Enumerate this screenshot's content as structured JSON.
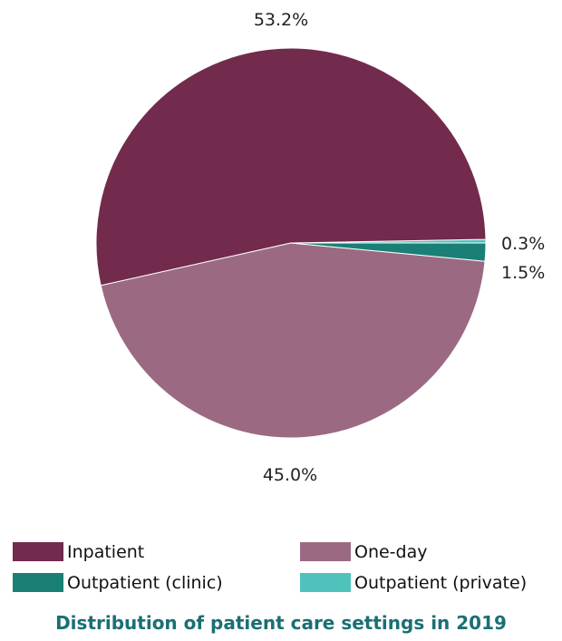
{
  "chart_data": {
    "type": "pie",
    "title": "Distribution of patient care settings in 2019",
    "slices": [
      {
        "label": "Inpatient",
        "value": 53.2,
        "value_label": "53.2%",
        "color": "#722a4d"
      },
      {
        "label": "One-day",
        "value": 45.0,
        "value_label": "45.0%",
        "color": "#9b6a82"
      },
      {
        "label": "Outpatient (clinic)",
        "value": 1.5,
        "value_label": "1.5%",
        "color": "#1a8077"
      },
      {
        "label": "Outpatient (private)",
        "value": 0.3,
        "value_label": "0.3%",
        "color": "#4fc2bb"
      }
    ],
    "legend_position": "bottom",
    "title_color": "#1a6f74"
  }
}
